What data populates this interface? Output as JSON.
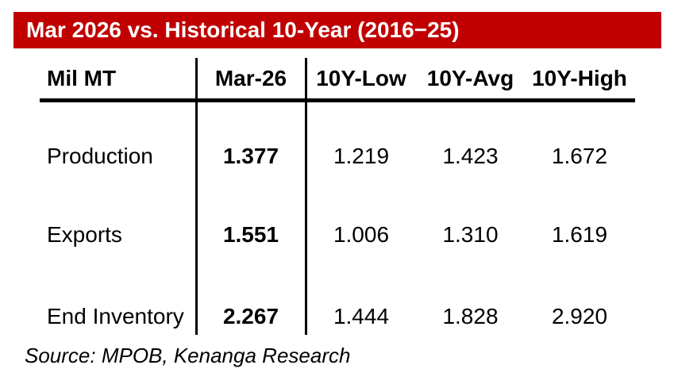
{
  "header": {
    "title": "Mar 2026 vs. Historical 10-Year (2016−25)",
    "bar_color": "#C00000",
    "title_text_color": "#FFFFFF"
  },
  "table": {
    "unit_label": "Mil MT",
    "columns": [
      "Mar-26",
      "10Y-Low",
      "10Y-Avg",
      "10Y-High"
    ],
    "rows": [
      {
        "label": "Production",
        "mar26": "1.377",
        "low": "1.219",
        "avg": "1.423",
        "high": "1.672"
      },
      {
        "label": "Exports",
        "mar26": "1.551",
        "low": "1.006",
        "avg": "1.310",
        "high": "1.619"
      },
      {
        "label": "End Inventory",
        "mar26": "2.267",
        "low": "1.444",
        "avg": "1.828",
        "high": "2.920"
      }
    ]
  },
  "footer": {
    "source": "Source: MPOB, Kenanga Research"
  },
  "chart_data": {
    "type": "table",
    "title": "Mar 2026 vs. Historical 10-Year (2016−25)",
    "unit": "Mil MT",
    "columns": [
      "Mar-26",
      "10Y-Low",
      "10Y-Avg",
      "10Y-High"
    ],
    "rows": [
      {
        "metric": "Production",
        "values": [
          1.377,
          1.219,
          1.423,
          1.672
        ]
      },
      {
        "metric": "Exports",
        "values": [
          1.551,
          1.006,
          1.31,
          1.619
        ]
      },
      {
        "metric": "End Inventory",
        "values": [
          2.267,
          1.444,
          1.828,
          2.92
        ]
      }
    ]
  }
}
